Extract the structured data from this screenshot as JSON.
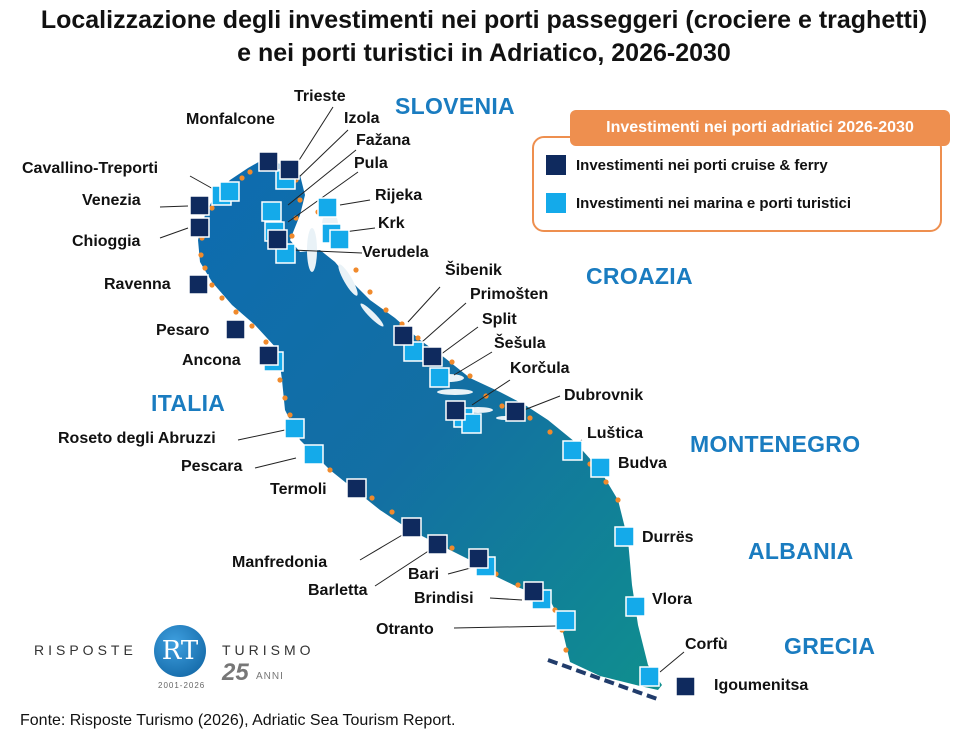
{
  "title": {
    "line1": "Localizzazione degli investimenti nei porti passeggeri (crociere e traghetti)",
    "line2": "e nei porti turistici in Adriatico, 2026-2030"
  },
  "legend": {
    "header": "Investimenti nei porti adriatici 2026-2030",
    "cruise": "Investimenti nei porti cruise & ferry",
    "marina": "Investimenti nei marina e porti turistici"
  },
  "colors": {
    "cruise": "#0f2a5e",
    "marina": "#14aaea",
    "sea": "#136fa3",
    "accent": "#ee8f4f",
    "country": "#1a7cc0"
  },
  "countries": {
    "slovenia": "SLOVENIA",
    "croazia": "CROAZIA",
    "italia": "ITALIA",
    "montenegro": "MONTENEGRO",
    "albania": "ALBANIA",
    "grecia": "GRECIA"
  },
  "ports": {
    "trieste": "Trieste",
    "monfalcone": "Monfalcone",
    "izola": "Izola",
    "fazana": "Fažana",
    "pula": "Pula",
    "cavallino": "Cavallino-Treporti",
    "venezia": "Venezia",
    "rijeka": "Rijeka",
    "krk": "Krk",
    "chioggia": "Chioggia",
    "verudela": "Verudela",
    "ravenna": "Ravenna",
    "sibenik": "Šibenik",
    "primosten": "Primošten",
    "split": "Split",
    "pesaro": "Pesaro",
    "sesula": "Šešula",
    "ancona": "Ancona",
    "korcula": "Korčula",
    "dubrovnik": "Dubrovnik",
    "roseto": "Roseto degli Abruzzi",
    "lustica": "Luštica",
    "pescara": "Pescara",
    "budva": "Budva",
    "termoli": "Termoli",
    "durres": "Durrës",
    "manfredonia": "Manfredonia",
    "bari": "Bari",
    "barletta": "Barletta",
    "brindisi": "Brindisi",
    "vlora": "Vlora",
    "otranto": "Otranto",
    "corfu": "Corfù",
    "igoumenitsa": "Igoumenitsa"
  },
  "logo": {
    "left": "RISPOSTE",
    "right": "TURISMO",
    "mark": "RT",
    "years": "2001-2026",
    "anniv_number": "25",
    "anniv_word": "ANNI"
  },
  "source": "Fonte: Risposte Turismo (2026), Adriatic Sea Tourism Report."
}
